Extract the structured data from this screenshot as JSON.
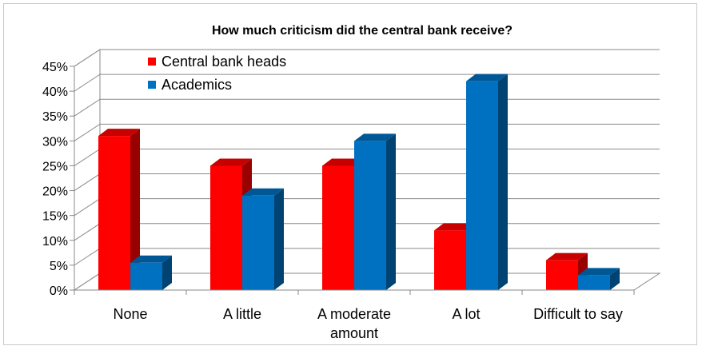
{
  "chart_data": {
    "type": "bar",
    "title": "How much criticism did the central bank receive?",
    "xlabel": "",
    "ylabel": "",
    "categories": [
      "None",
      "A little",
      "A moderate amount",
      "A lot",
      "Difficult to say"
    ],
    "category_lines": [
      [
        "None"
      ],
      [
        "A little"
      ],
      [
        "A moderate",
        "amount"
      ],
      [
        "A lot"
      ],
      [
        "Difficult to say"
      ]
    ],
    "series": [
      {
        "name": "Central bank heads",
        "values": [
          31,
          25,
          25,
          12,
          6
        ],
        "color": "#ff0000"
      },
      {
        "name": "Academics",
        "values": [
          5.5,
          19,
          30,
          42,
          3
        ],
        "color": "#0070c0"
      }
    ],
    "ylim": [
      0,
      45
    ],
    "yticks": [
      "0%",
      "5%",
      "10%",
      "15%",
      "20%",
      "25%",
      "30%",
      "35%",
      "40%",
      "45%"
    ],
    "grid": true,
    "legend": "top-left",
    "style": "3d-clustered-column"
  }
}
